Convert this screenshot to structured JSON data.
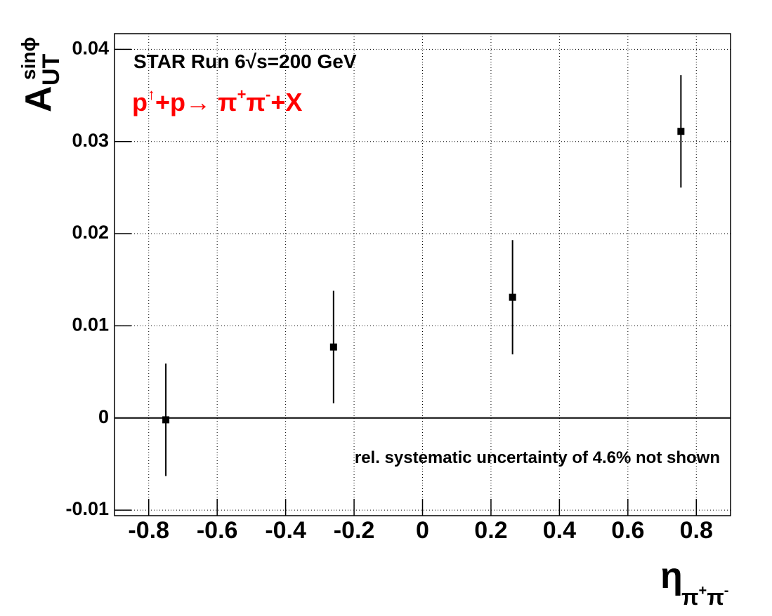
{
  "chart_data": {
    "type": "scatter",
    "x_label": {
      "symbol": "η",
      "sub": [
        "π",
        "+",
        "π",
        "-"
      ]
    },
    "y_label": {
      "symbol": "A",
      "sub": "UT",
      "sup": "sinϕ"
    },
    "annotations": {
      "experiment": "STAR Run 6√s=200 GeV",
      "process": [
        "p",
        "↑",
        "+p→ π",
        "+",
        "π",
        "-",
        "+X"
      ],
      "note": "rel. systematic uncertainty of 4.6% not shown"
    },
    "series": [
      {
        "color": "#000000",
        "x": [
          -0.75,
          -0.26,
          0.263,
          0.755
        ],
        "values": [
          -0.0002,
          0.0077,
          0.0131,
          0.0311
        ],
        "errors": [
          0.0061,
          0.0061,
          0.0062,
          0.0061
        ]
      }
    ],
    "xlim": [
      -0.9,
      0.9
    ],
    "xticks": [
      -0.8,
      -0.6,
      -0.4,
      -0.2,
      0,
      0.2,
      0.4,
      0.6,
      0.8
    ],
    "ylim": [
      -0.0106,
      0.0417
    ],
    "yticks": [
      -0.01,
      0,
      0.01,
      0.02,
      0.03,
      0.04
    ],
    "reference_line": 0,
    "grid": true
  }
}
